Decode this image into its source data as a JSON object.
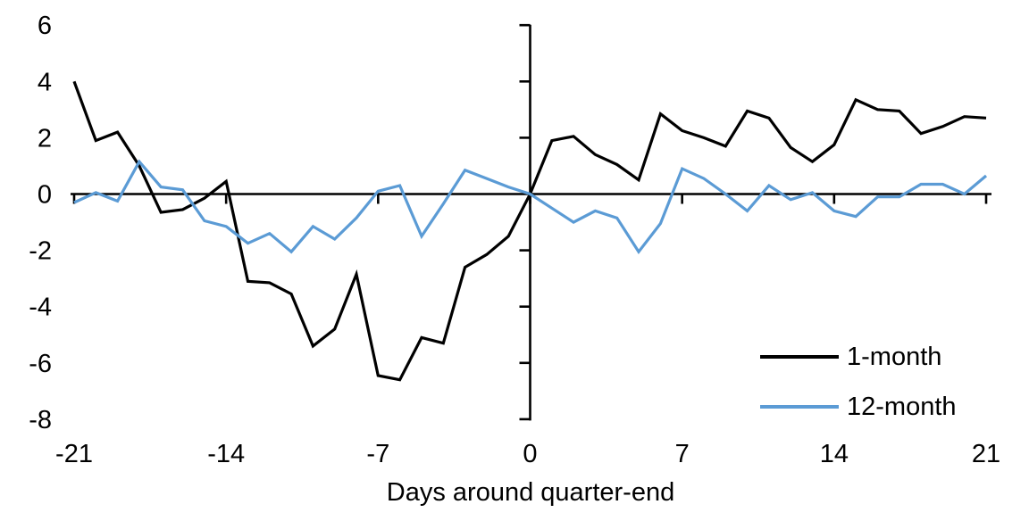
{
  "chart_data": {
    "type": "line",
    "title": "",
    "xlabel": "Days around quarter-end",
    "ylabel": "",
    "x": [
      -21,
      -20,
      -19,
      -18,
      -17,
      -16,
      -15,
      -14,
      -13,
      -12,
      -11,
      -10,
      -9,
      -8,
      -7,
      -6,
      -5,
      -4,
      -3,
      -2,
      -1,
      0,
      1,
      2,
      3,
      4,
      5,
      6,
      7,
      8,
      9,
      10,
      11,
      12,
      13,
      14,
      15,
      16,
      17,
      18,
      19,
      20,
      21
    ],
    "series": [
      {
        "name": "1-month",
        "color": "#000000",
        "values": [
          4.0,
          1.9,
          2.2,
          1.0,
          -0.65,
          -0.55,
          -0.15,
          0.45,
          -3.1,
          -3.15,
          -3.55,
          -5.4,
          -4.8,
          -2.85,
          -6.45,
          -6.6,
          -5.1,
          -5.3,
          -2.6,
          -2.15,
          -1.5,
          0.0,
          1.9,
          2.05,
          1.4,
          1.05,
          0.5,
          2.85,
          2.25,
          2.0,
          1.7,
          2.95,
          2.7,
          1.65,
          1.15,
          1.75,
          3.35,
          3.0,
          2.95,
          2.15,
          2.4,
          2.75,
          2.7
        ]
      },
      {
        "name": "12-month",
        "color": "#5B9BD5",
        "values": [
          -0.3,
          0.05,
          -0.25,
          1.15,
          0.25,
          0.15,
          -0.95,
          -1.15,
          -1.75,
          -1.4,
          -2.05,
          -1.15,
          -1.6,
          -0.85,
          0.1,
          0.3,
          -1.5,
          -0.35,
          0.85,
          0.55,
          0.25,
          0.0,
          -0.5,
          -1.0,
          -0.6,
          -0.85,
          -2.05,
          -1.05,
          0.9,
          0.55,
          0.0,
          -0.6,
          0.3,
          -0.2,
          0.05,
          -0.6,
          -0.8,
          -0.1,
          -0.1,
          0.35,
          0.35,
          0.0,
          0.65
        ]
      }
    ],
    "xlim": [
      -21,
      21
    ],
    "ylim": [
      -8,
      6
    ],
    "xticks": [
      -21,
      -14,
      -7,
      0,
      7,
      14,
      21
    ],
    "yticks": [
      6,
      4,
      2,
      0,
      -2,
      -4,
      -6,
      -8
    ],
    "grid": false,
    "legend_position": "lower-right",
    "axis_color": "#000000",
    "x_axis_cross": 0,
    "y_axis_cross": 0
  }
}
